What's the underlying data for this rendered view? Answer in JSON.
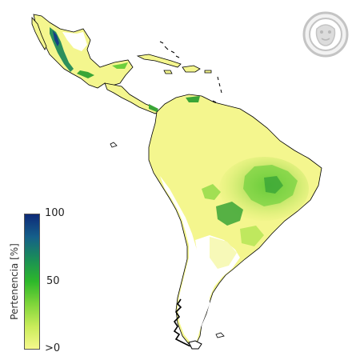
{
  "legend": {
    "title": "Pertenencia [%]",
    "tick_max": "100",
    "tick_mid": "50",
    "tick_min": ">0",
    "gradient_colors": [
      "#f5f88c",
      "#c9ec5a",
      "#7fd53a",
      "#2db82a",
      "#1a8e57",
      "#155f8a",
      "#0d2a78"
    ]
  },
  "colors": {
    "land_light": "#f4f68e",
    "land_mid": "#c9ec5a",
    "land_green": "#5cc231",
    "land_dark": "#1b7e55",
    "land_blue": "#163f86",
    "white_area": "#ffffff",
    "coast_line": "#000000",
    "logo_stroke": "#c4c4c4"
  },
  "logo": {
    "icon": "jaguar-emblem-icon"
  }
}
